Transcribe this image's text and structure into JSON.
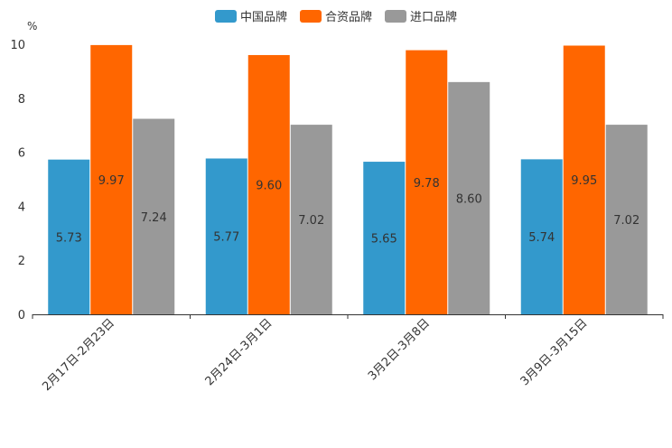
{
  "chart_data": {
    "type": "bar",
    "title": "",
    "xlabel": "",
    "ylabel": "%",
    "ylim": [
      0,
      10
    ],
    "yticks": [
      "0",
      "2",
      "4",
      "6",
      "8",
      "10"
    ],
    "categories": [
      "2月17日-2月23日",
      "2月24日-3月1日",
      "3月2日-3月8日",
      "3月9日-3月15日"
    ],
    "series": [
      {
        "name": "中国品牌",
        "color": "#3399CC",
        "values": [
          5.73,
          5.77,
          5.65,
          5.74
        ],
        "labels": [
          "5.73",
          "5.77",
          "5.65",
          "5.74"
        ]
      },
      {
        "name": "合资品牌",
        "color": "#FF6600",
        "values": [
          9.97,
          9.6,
          9.78,
          9.95
        ],
        "labels": [
          "9.97",
          "9.60",
          "9.78",
          "9.95"
        ]
      },
      {
        "name": "进口品牌",
        "color": "#999999",
        "values": [
          7.24,
          7.02,
          8.6,
          7.02
        ],
        "labels": [
          "7.24",
          "7.02",
          "8.60",
          "7.02"
        ]
      }
    ],
    "legend_position": "top-center",
    "grid": false
  }
}
